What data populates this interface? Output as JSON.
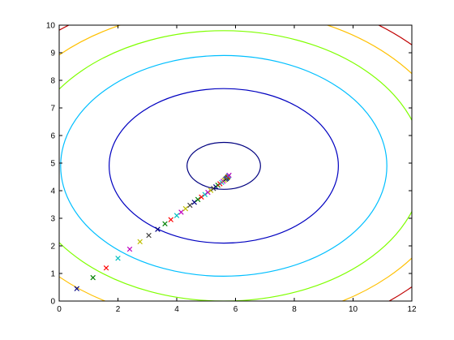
{
  "chart_data": {
    "type": "scatter",
    "title": "",
    "xlabel": "",
    "ylabel": "",
    "xlim": [
      0,
      12
    ],
    "ylim": [
      0,
      10
    ],
    "x_ticks": [
      "0",
      "2",
      "4",
      "6",
      "8",
      "10",
      "12"
    ],
    "y_ticks": [
      "0",
      "1",
      "2",
      "3",
      "4",
      "5",
      "6",
      "7",
      "8",
      "9",
      "10"
    ],
    "grid": false,
    "legend": "none",
    "contours": {
      "center": [
        5.6,
        4.9
      ],
      "levels": [
        {
          "rx": 1.25,
          "ry": 0.85,
          "color": "#000080"
        },
        {
          "rx": 3.9,
          "ry": 2.8,
          "color": "#0000c0"
        },
        {
          "rx": 5.55,
          "ry": 4.0,
          "color": "#00bfff"
        },
        {
          "rx": 6.8,
          "ry": 4.9,
          "color": "#7fff00"
        },
        {
          "rx": 7.9,
          "ry": 5.7,
          "color": "#ffc000"
        },
        {
          "rx": 8.85,
          "ry": 6.35,
          "color": "#c00000"
        }
      ]
    },
    "series": [
      {
        "marker": "x",
        "colors": [
          "#000080",
          "#008000",
          "#ff0000",
          "#00bfbf",
          "#bf00bf",
          "#bfbf00",
          "#404040"
        ],
        "x": [
          0.6,
          1.15,
          1.6,
          2.0,
          2.4,
          2.75,
          3.05,
          3.35,
          3.6,
          3.8,
          4.0,
          4.15,
          4.3,
          4.45,
          4.6,
          4.72,
          4.84,
          4.96,
          5.06,
          5.16,
          5.25,
          5.33,
          5.4,
          5.47,
          5.53,
          5.58,
          5.62,
          5.66,
          5.69,
          5.72,
          5.74,
          5.76,
          5.78
        ],
        "y": [
          0.45,
          0.85,
          1.2,
          1.55,
          1.88,
          2.15,
          2.38,
          2.6,
          2.8,
          2.95,
          3.1,
          3.22,
          3.35,
          3.47,
          3.58,
          3.68,
          3.77,
          3.86,
          3.94,
          4.01,
          4.08,
          4.14,
          4.2,
          4.25,
          4.3,
          4.34,
          4.38,
          4.41,
          4.44,
          4.47,
          4.5,
          4.53,
          4.56
        ]
      }
    ]
  }
}
